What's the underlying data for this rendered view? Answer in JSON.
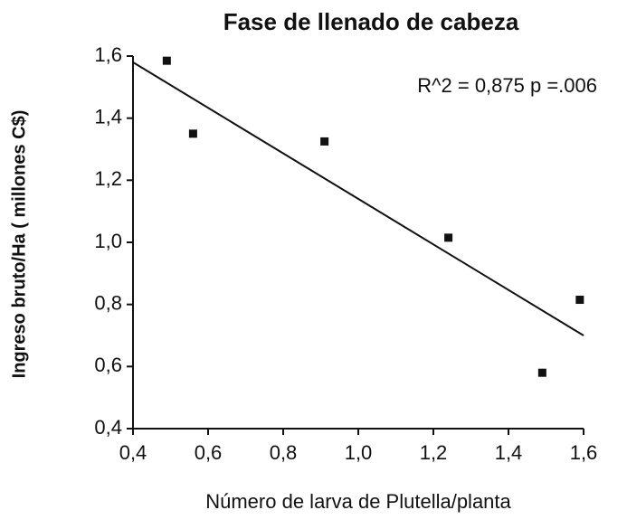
{
  "chart_data": {
    "type": "scatter",
    "title": "Fase de llenado de cabeza",
    "x_label": "Número de larva de Plutella/planta",
    "y_label": "Ingreso bruto/Ha ( millones C$)",
    "annotation": "R^2 = 0,875  p =.006",
    "x": [
      0.49,
      0.56,
      0.91,
      1.24,
      1.49,
      1.59
    ],
    "values": [
      1.585,
      1.35,
      1.325,
      1.015,
      0.58,
      0.815
    ],
    "color": "#111111",
    "trendline": {
      "x": [
        0.4,
        1.6
      ],
      "values": [
        1.58,
        0.7
      ]
    },
    "xlim": [
      0.4,
      1.6
    ],
    "ylim": [
      0.4,
      1.6
    ],
    "xticks": [
      {
        "value": 0.4,
        "label": "0,4"
      },
      {
        "value": 0.6,
        "label": "0,6"
      },
      {
        "value": 0.8,
        "label": "0,8"
      },
      {
        "value": 1.0,
        "label": "1,0"
      },
      {
        "value": 1.2,
        "label": "1,2"
      },
      {
        "value": 1.4,
        "label": "1,4"
      },
      {
        "value": 1.6,
        "label": "1,6"
      }
    ],
    "yticks": [
      {
        "value": 0.4,
        "label": "0,4"
      },
      {
        "value": 0.6,
        "label": "0,6"
      },
      {
        "value": 0.8,
        "label": "0,8"
      },
      {
        "value": 1.0,
        "label": "1,0"
      },
      {
        "value": 1.2,
        "label": "1,2"
      },
      {
        "value": 1.4,
        "label": "1,4"
      },
      {
        "value": 1.6,
        "label": "1,6"
      }
    ],
    "grid": false
  }
}
